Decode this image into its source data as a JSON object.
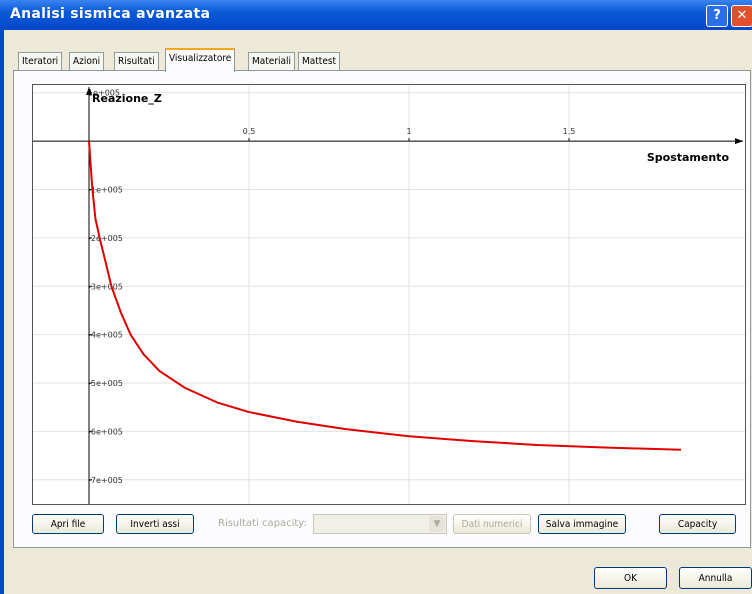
{
  "window": {
    "title": "Analisi sismica avanzata"
  },
  "tabs": [
    "Iteratori",
    "Azioni",
    "Risultati",
    "Visualizzatore",
    "Materiali",
    "Mattest"
  ],
  "chart_data": {
    "type": "line",
    "ylabel": "Reazione_Z",
    "xlabel": "Spostamento",
    "x": [
      0,
      0.01,
      0.02,
      0.035,
      0.05,
      0.07,
      0.1,
      0.13,
      0.17,
      0.22,
      0.3,
      0.4,
      0.5,
      0.65,
      0.8,
      1.0,
      1.2,
      1.4,
      1.6,
      1.85
    ],
    "series": [
      {
        "name": "Reazione_Z",
        "color": "#e00000",
        "values": [
          0,
          -95000,
          -160000,
          -205000,
          -245000,
          -300000,
          -355000,
          -400000,
          -440000,
          -475000,
          -510000,
          -540000,
          -560000,
          -580000,
          -595000,
          -610000,
          -620000,
          -628000,
          -633000,
          -638000
        ]
      }
    ],
    "xlim": [
      -0.175,
      2.05
    ],
    "ylim": [
      -750000,
      116000
    ],
    "xticks": [
      0.5,
      1,
      1.5
    ],
    "yticks": [
      {
        "value": 100000,
        "label": "1e+005"
      },
      {
        "value": -100000,
        "label": "-1e+005"
      },
      {
        "value": -200000,
        "label": "-2e+005"
      },
      {
        "value": -300000,
        "label": "-3e+005"
      },
      {
        "value": -400000,
        "label": "-4e+005"
      },
      {
        "value": -500000,
        "label": "-5e+005"
      },
      {
        "value": -600000,
        "label": "-6e+005"
      },
      {
        "value": -700000,
        "label": "-7e+005"
      }
    ],
    "grid": true
  },
  "controls": {
    "open_file": "Apri file",
    "swap_axes": "Inverti assi",
    "capacity_label": "Risultati capacity:",
    "numeric_data": "Dati numerici",
    "save_image": "Salva immagine",
    "capacity": "Capacity"
  },
  "dialog_buttons": {
    "ok": "OK",
    "cancel": "Annulla"
  }
}
